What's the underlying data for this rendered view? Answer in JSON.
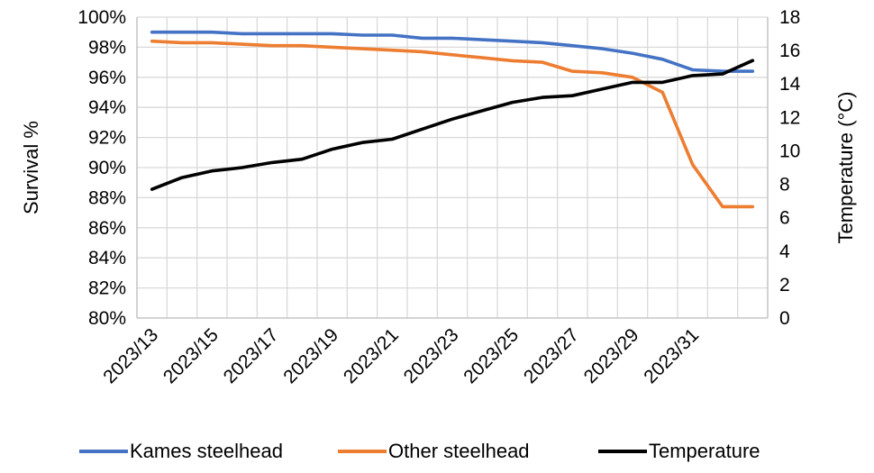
{
  "chart_data": {
    "type": "line",
    "categories": [
      "2023/13",
      "2023/14",
      "2023/15",
      "2023/16",
      "2023/17",
      "2023/18",
      "2023/19",
      "2023/20",
      "2023/21",
      "2023/22",
      "2023/23",
      "2023/24",
      "2023/25",
      "2023/26",
      "2023/27",
      "2023/28",
      "2023/29",
      "2023/30",
      "2023/31",
      "2023/32",
      "2023/33"
    ],
    "x_tick_labels": [
      "2023/13",
      "2023/15",
      "2023/17",
      "2023/19",
      "2023/21",
      "2023/23",
      "2023/25",
      "2023/27",
      "2023/29",
      "2023/31"
    ],
    "y_left": {
      "label": "Survival %",
      "range": [
        0.8,
        1.0
      ],
      "ticks": [
        "80%",
        "82%",
        "84%",
        "86%",
        "88%",
        "90%",
        "92%",
        "94%",
        "96%",
        "98%",
        "100%"
      ]
    },
    "y_right": {
      "label": "Temperature (°C)",
      "range": [
        0,
        18
      ],
      "ticks": [
        "0",
        "2",
        "4",
        "6",
        "8",
        "10",
        "12",
        "14",
        "16",
        "18"
      ]
    },
    "series": [
      {
        "name": "Kames steelhead",
        "axis": "left",
        "color": "#4472c4",
        "values": [
          0.99,
          0.99,
          0.99,
          0.989,
          0.989,
          0.989,
          0.989,
          0.988,
          0.988,
          0.986,
          0.986,
          0.985,
          0.984,
          0.983,
          0.981,
          0.979,
          0.976,
          0.972,
          0.965,
          0.964,
          0.964
        ]
      },
      {
        "name": "Other steelhead",
        "axis": "left",
        "color": "#ed7d31",
        "values": [
          0.984,
          0.983,
          0.983,
          0.982,
          0.981,
          0.981,
          0.98,
          0.979,
          0.978,
          0.977,
          0.975,
          0.973,
          0.971,
          0.97,
          0.964,
          0.963,
          0.96,
          0.95,
          0.902,
          0.874,
          0.874
        ]
      },
      {
        "name": "Temperature",
        "axis": "right",
        "color": "#000000",
        "values": [
          7.7,
          8.4,
          8.8,
          9.0,
          9.3,
          9.5,
          10.1,
          10.5,
          10.7,
          11.3,
          11.9,
          12.4,
          12.9,
          13.2,
          13.3,
          13.7,
          14.1,
          14.1,
          14.5,
          14.6,
          15.4
        ]
      }
    ],
    "legend_position": "bottom",
    "grid": true
  }
}
